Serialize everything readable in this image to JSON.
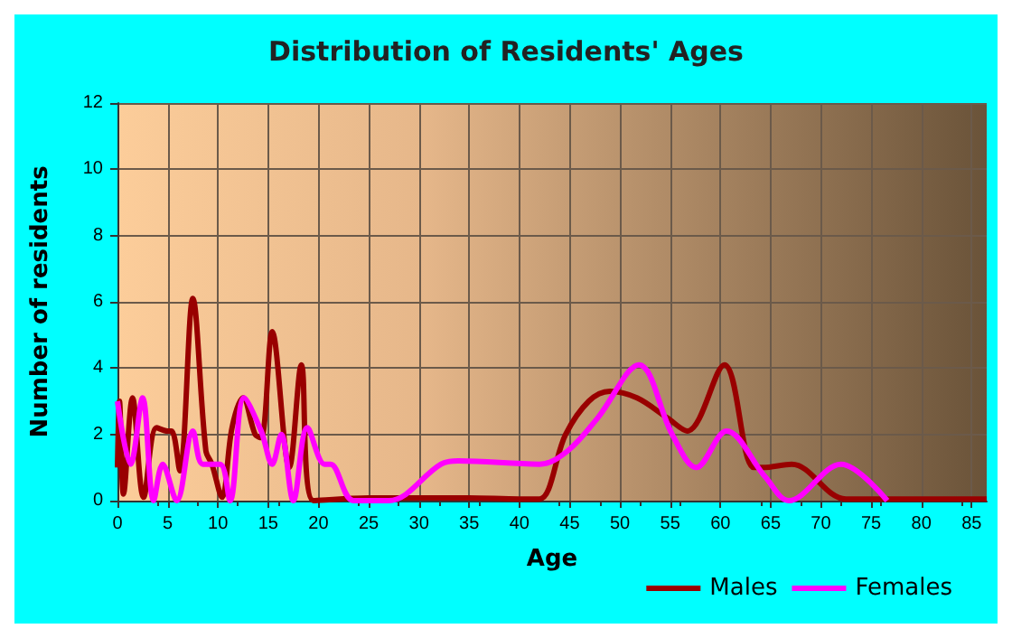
{
  "chart_data": {
    "type": "line",
    "title": "Distribution of Residents' Ages",
    "xlabel": "Age",
    "ylabel": "Number of residents",
    "xlim": [
      0,
      86.5
    ],
    "xticks": [
      0,
      5,
      10,
      15,
      20,
      25,
      30,
      35,
      40,
      45,
      50,
      55,
      60,
      65,
      70,
      75,
      80,
      85
    ],
    "ylim": [
      0,
      12
    ],
    "yticks": [
      0,
      2,
      4,
      6,
      8,
      10,
      12
    ],
    "grid": true,
    "legend": "bottom right",
    "marker": "none",
    "line_style": "solid",
    "series": [
      {
        "name": "Males",
        "color": "#990000",
        "x": [
          0,
          0.2,
          0.6,
          1.5,
          2.6,
          3.9,
          5,
          5.4,
          6.2,
          7.5,
          8.8,
          9.4,
          10.4,
          11.4,
          12.5,
          13.7,
          14.3,
          15.4,
          17.1,
          18.3,
          19.5,
          25,
          30,
          35,
          40,
          42,
          44.6,
          46.9,
          49,
          51.7,
          54.7,
          56.7,
          60.4,
          63.3,
          64.2,
          67.1,
          72.5,
          80,
          86.5
        ],
        "values": [
          1,
          3,
          0.2,
          3.1,
          0.1,
          2.2,
          2.1,
          2.1,
          0.9,
          6.1,
          1.5,
          1.1,
          0.1,
          2.2,
          3.1,
          2,
          1.9,
          5.1,
          1,
          4.1,
          0,
          0.08,
          0.08,
          0.08,
          0.05,
          0.05,
          2,
          3,
          3.3,
          3.1,
          2.5,
          2.1,
          4.1,
          1,
          1,
          1.1,
          0.05,
          0.05,
          0.05
        ]
      },
      {
        "name": "Females",
        "color": "#ff00ff",
        "x": [
          0,
          1.3,
          2.5,
          3.6,
          4.5,
          5.9,
          7.5,
          8.5,
          10.2,
          11.2,
          12.6,
          14.3,
          15.4,
          16.3,
          17.5,
          18.9,
          20.6,
          21.2,
          23.5,
          27,
          32.2,
          33.9,
          42,
          44.8,
          47.8,
          51.9,
          55.2,
          57.6,
          60.6,
          64.5,
          66.8,
          72,
          76.6
        ],
        "values": [
          3,
          1.1,
          3.1,
          0,
          1.1,
          0,
          2.1,
          1.1,
          1.1,
          0,
          3.1,
          2.1,
          1.1,
          2,
          0,
          2.2,
          1.1,
          1.1,
          0,
          0,
          1.1,
          1.2,
          1.1,
          1.5,
          2.5,
          4.1,
          2,
          1,
          2.1,
          0.7,
          0,
          1.1,
          0
        ]
      }
    ]
  }
}
